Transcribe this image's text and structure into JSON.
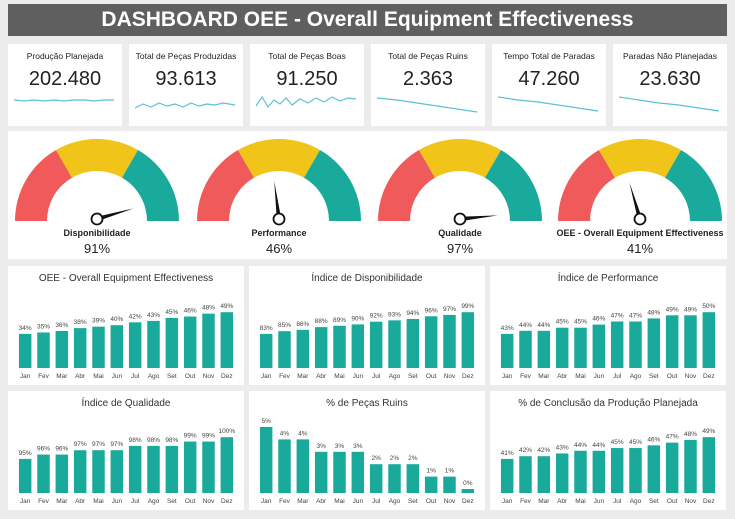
{
  "title": "DASHBOARD OEE - Overall Equipment Effectiveness",
  "colors": {
    "teal": "#1aaa9b",
    "red": "#f15a5a",
    "yellow": "#f0c419",
    "header": "#5f5f5f"
  },
  "kpis": [
    {
      "label": "Produção Planejada",
      "value": "202.480"
    },
    {
      "label": "Total de Peças Produzidas",
      "value": "93.613"
    },
    {
      "label": "Total de Peças Boas",
      "value": "91.250"
    },
    {
      "label": "Total de Peças Ruins",
      "value": "2.363"
    },
    {
      "label": "Tempo Total de Paradas",
      "value": "47.260"
    },
    {
      "label": "Paradas Não Planejadas",
      "value": "23.630"
    }
  ],
  "gauges": [
    {
      "label": "Disponibilidade",
      "value": "91%",
      "fraction": 0.91
    },
    {
      "label": "Performance",
      "value": "46%",
      "fraction": 0.46
    },
    {
      "label": "Qualidade",
      "value": "97%",
      "fraction": 0.97
    },
    {
      "label": "OEE - Overall Equipment Effectiveness",
      "value": "41%",
      "fraction": 0.41
    }
  ],
  "chart_data": [
    {
      "type": "bar",
      "title": "OEE - Overall Equipment Effectiveness",
      "categories": [
        "Jan",
        "Fev",
        "Mar",
        "Abr",
        "Mai",
        "Jun",
        "Jul",
        "Ago",
        "Set",
        "Out",
        "Nov",
        "Dez"
      ],
      "values": [
        34,
        35,
        36,
        38,
        39,
        40,
        42,
        43,
        45,
        46,
        48,
        49
      ],
      "labels": [
        "34%",
        "35%",
        "36%",
        "38%",
        "39%",
        "40%",
        "42%",
        "43%",
        "45%",
        "46%",
        "48%",
        "49%"
      ]
    },
    {
      "type": "bar",
      "title": "Índice de Disponibilidade",
      "categories": [
        "Jan",
        "Fev",
        "Mar",
        "Abr",
        "Mai",
        "Jun",
        "Jul",
        "Ago",
        "Set",
        "Out",
        "Nov",
        "Dez"
      ],
      "values": [
        83,
        85,
        86,
        88,
        89,
        90,
        92,
        93,
        94,
        96,
        97,
        99
      ],
      "labels": [
        "83%",
        "85%",
        "86%",
        "88%",
        "89%",
        "90%",
        "92%",
        "93%",
        "94%",
        "96%",
        "97%",
        "99%"
      ]
    },
    {
      "type": "bar",
      "title": "Índice de Performance",
      "categories": [
        "Jan",
        "Fev",
        "Mar",
        "Abr",
        "Mai",
        "Jun",
        "Jul",
        "Ago",
        "Set",
        "Out",
        "Nov",
        "Dez"
      ],
      "values": [
        43,
        44,
        44,
        45,
        45,
        46,
        47,
        47,
        48,
        49,
        49,
        50
      ],
      "labels": [
        "43%",
        "44%",
        "44%",
        "45%",
        "45%",
        "46%",
        "47%",
        "47%",
        "48%",
        "49%",
        "49%",
        "50%"
      ]
    },
    {
      "type": "bar",
      "title": "Índice de Qualidade",
      "categories": [
        "Jan",
        "Fev",
        "Mar",
        "Abr",
        "Mai",
        "Jun",
        "Jul",
        "Ago",
        "Set",
        "Out",
        "Nov",
        "Dez"
      ],
      "values": [
        95,
        96,
        96,
        97,
        97,
        97,
        98,
        98,
        98,
        99,
        99,
        100
      ],
      "labels": [
        "95%",
        "96%",
        "96%",
        "97%",
        "97%",
        "97%",
        "98%",
        "98%",
        "98%",
        "99%",
        "99%",
        "100%"
      ]
    },
    {
      "type": "bar",
      "title": "% de Peças Ruins",
      "categories": [
        "Jan",
        "Fev",
        "Mar",
        "Abr",
        "Mai",
        "Jun",
        "Jul",
        "Ago",
        "Set",
        "Out",
        "Nov",
        "Dez"
      ],
      "values": [
        5,
        4,
        4,
        3,
        3,
        3,
        2,
        2,
        2,
        1,
        1,
        0
      ],
      "labels": [
        "5%",
        "4%",
        "4%",
        "3%",
        "3%",
        "3%",
        "2%",
        "2%",
        "2%",
        "1%",
        "1%",
        "0%"
      ]
    },
    {
      "type": "bar",
      "title": "% de Conclusão da Produção Planejada",
      "categories": [
        "Jan",
        "Fev",
        "Mar",
        "Abr",
        "Mai",
        "Jun",
        "Jul",
        "Ago",
        "Set",
        "Out",
        "Nov",
        "Dez"
      ],
      "values": [
        41,
        42,
        42,
        43,
        44,
        44,
        45,
        45,
        46,
        47,
        48,
        49
      ],
      "labels": [
        "41%",
        "42%",
        "42%",
        "43%",
        "44%",
        "44%",
        "45%",
        "45%",
        "46%",
        "47%",
        "48%",
        "49%"
      ]
    }
  ]
}
